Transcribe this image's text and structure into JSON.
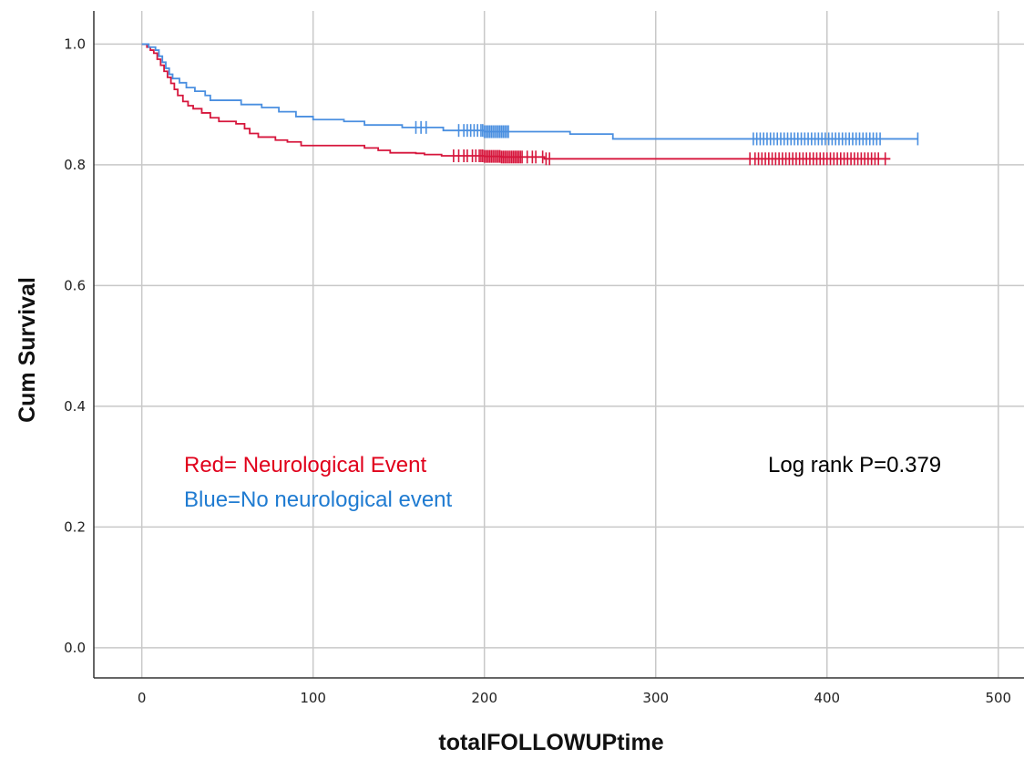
{
  "chart_data": {
    "type": "line",
    "subtype": "kaplan-meier",
    "xlabel": "totalFOLLOWUPtime",
    "ylabel": "Cum Survival",
    "xlim": [
      -28,
      515
    ],
    "ylim": [
      -0.05,
      1.055
    ],
    "xticks": [
      0,
      100,
      200,
      300,
      400,
      500
    ],
    "yticks": [
      0.0,
      0.2,
      0.4,
      0.6,
      0.8,
      1.0
    ],
    "xtick_labels": [
      "0",
      "100",
      "200",
      "300",
      "400",
      "500"
    ],
    "ytick_labels": [
      "0.0",
      "0.2",
      "0.4",
      "0.6",
      "0.8",
      "1.0"
    ],
    "grid": true,
    "series": [
      {
        "color": "#d6163c",
        "steps": [
          [
            0,
            1.0
          ],
          [
            3,
            0.995
          ],
          [
            5,
            0.99
          ],
          [
            7,
            0.985
          ],
          [
            9,
            0.975
          ],
          [
            11,
            0.965
          ],
          [
            13,
            0.955
          ],
          [
            15,
            0.945
          ],
          [
            17,
            0.935
          ],
          [
            19,
            0.925
          ],
          [
            21,
            0.915
          ],
          [
            24,
            0.905
          ],
          [
            27,
            0.898
          ],
          [
            30,
            0.893
          ],
          [
            35,
            0.886
          ],
          [
            40,
            0.878
          ],
          [
            45,
            0.872
          ],
          [
            55,
            0.868
          ],
          [
            60,
            0.86
          ],
          [
            63,
            0.852
          ],
          [
            68,
            0.846
          ],
          [
            78,
            0.841
          ],
          [
            85,
            0.838
          ],
          [
            93,
            0.832
          ],
          [
            130,
            0.828
          ],
          [
            138,
            0.824
          ],
          [
            145,
            0.82
          ],
          [
            150,
            0.82
          ],
          [
            160,
            0.819
          ],
          [
            165,
            0.817
          ],
          [
            175,
            0.815
          ],
          [
            200,
            0.814
          ],
          [
            210,
            0.813
          ],
          [
            235,
            0.81
          ],
          [
            437,
            0.81
          ]
        ],
        "censor_x": [
          182,
          185,
          188,
          190,
          193,
          195,
          197,
          198,
          199,
          200,
          201,
          202,
          203,
          204,
          205,
          206,
          207,
          208,
          209,
          210,
          211,
          212,
          213,
          214,
          215,
          216,
          217,
          218,
          219,
          220,
          221,
          222,
          225,
          228,
          230,
          234,
          236,
          238,
          355,
          358,
          360,
          362,
          364,
          366,
          368,
          370,
          372,
          374,
          376,
          378,
          380,
          382,
          384,
          386,
          388,
          390,
          392,
          394,
          396,
          398,
          400,
          402,
          404,
          406,
          408,
          410,
          412,
          414,
          416,
          418,
          420,
          422,
          424,
          426,
          428,
          430,
          434
        ]
      },
      {
        "color": "#4a8fe0",
        "steps": [
          [
            0,
            1.0
          ],
          [
            4,
            0.995
          ],
          [
            8,
            0.99
          ],
          [
            10,
            0.98
          ],
          [
            12,
            0.97
          ],
          [
            14,
            0.96
          ],
          [
            16,
            0.95
          ],
          [
            18,
            0.943
          ],
          [
            22,
            0.936
          ],
          [
            26,
            0.928
          ],
          [
            31,
            0.922
          ],
          [
            37,
            0.915
          ],
          [
            40,
            0.907
          ],
          [
            58,
            0.9
          ],
          [
            70,
            0.895
          ],
          [
            80,
            0.888
          ],
          [
            90,
            0.88
          ],
          [
            100,
            0.875
          ],
          [
            118,
            0.872
          ],
          [
            130,
            0.866
          ],
          [
            152,
            0.862
          ],
          [
            176,
            0.857
          ],
          [
            200,
            0.855
          ],
          [
            250,
            0.851
          ],
          [
            275,
            0.843
          ],
          [
            453,
            0.843
          ]
        ],
        "censor_x": [
          160,
          163,
          166,
          185,
          188,
          190,
          192,
          194,
          196,
          198,
          199,
          200,
          201,
          202,
          203,
          204,
          205,
          206,
          207,
          208,
          209,
          210,
          211,
          212,
          213,
          214,
          357,
          359,
          361,
          363,
          365,
          367,
          369,
          371,
          373,
          375,
          377,
          379,
          381,
          383,
          385,
          387,
          389,
          391,
          393,
          395,
          397,
          399,
          401,
          403,
          405,
          407,
          409,
          411,
          413,
          415,
          417,
          419,
          421,
          423,
          425,
          427,
          429,
          431,
          453
        ]
      }
    ],
    "annotations": {
      "red_label": "Red= Neurological Event",
      "red_color": "#e0001b",
      "blue_label": "Blue=No neurological event",
      "blue_color": "#1f7bd1",
      "logrank": "Log rank P=0.379"
    }
  }
}
